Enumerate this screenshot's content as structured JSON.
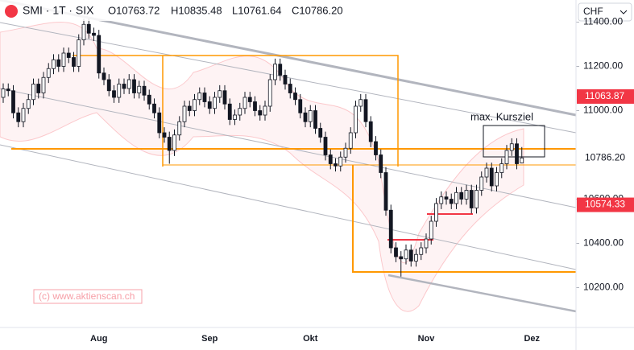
{
  "header": {
    "symbol": "SMI · 1T · SIX",
    "open": "O10763.72",
    "high": "H10835.48",
    "low": "L10761.64",
    "close": "C10786.20"
  },
  "currency": "CHF",
  "watermark": "(c) www.aktienscan.ch",
  "annotation": "max. Kursziel",
  "chart_data": {
    "type": "candlestick",
    "categories": [
      null,
      null,
      null,
      null,
      null,
      null,
      null,
      null,
      null,
      null,
      null,
      null,
      null,
      null,
      null,
      null,
      null,
      null,
      null,
      "Aug",
      null,
      null,
      null,
      null,
      null,
      null,
      null,
      null,
      null,
      null,
      null,
      null,
      null,
      null,
      null,
      null,
      null,
      null,
      null,
      null,
      null,
      "Sep",
      null,
      null,
      null,
      null,
      null,
      null,
      null,
      null,
      null,
      null,
      null,
      null,
      null,
      null,
      null,
      null,
      null,
      null,
      null,
      "Okt",
      null,
      null,
      null,
      null,
      null,
      null,
      null,
      null,
      null,
      null,
      null,
      null,
      null,
      null,
      null,
      null,
      null,
      null,
      null,
      null,
      null,
      null,
      "Nov",
      null,
      null,
      null,
      null,
      null,
      null,
      null,
      null,
      null,
      null,
      null,
      null,
      null,
      null,
      null,
      null,
      null,
      null,
      null,
      null,
      "Dez"
    ],
    "series": [
      {
        "up_color": "#ffffff",
        "down_color": "#131722",
        "open": [
          11060,
          11098,
          11090,
          10990,
          10950,
          11010,
          11050,
          11120,
          11080,
          11150,
          11190,
          11230,
          11200,
          11260,
          11240,
          11200,
          11320,
          11390,
          11350,
          11340,
          11170,
          11140,
          11090,
          11060,
          11120,
          11100,
          11140,
          11080,
          11110,
          11070,
          11030,
          10990,
          10900,
          10880,
          10820,
          10890,
          10950,
          11020,
          11000,
          11050,
          11080,
          11040,
          11010,
          11060,
          11090,
          11030,
          10960,
          10980,
          11010,
          11060,
          11040,
          11000,
          10980,
          11020,
          11140,
          11210,
          11160,
          11120,
          11080,
          11050,
          10990,
          10950,
          11000,
          10920,
          10880,
          10800,
          10760,
          10750,
          10790,
          10830,
          10900,
          11020,
          11050,
          10950,
          10860,
          10800,
          10720,
          10550,
          10380,
          10340,
          10330,
          10370,
          10320,
          10350,
          10380,
          10420,
          10500,
          10580,
          10610,
          10600,
          10580,
          10630,
          10600,
          10640,
          10560,
          10640,
          10700,
          10740,
          10660,
          10720,
          10760,
          10820,
          10850,
          10763.72,
          null,
          null
        ],
        "high": [
          11123,
          11123,
          11115,
          11015,
          11035,
          11075,
          11145,
          11145,
          11175,
          11215,
          11255,
          11255,
          11285,
          11285,
          11265,
          11345,
          11415,
          11415,
          11375,
          11365,
          11195,
          11165,
          11115,
          11145,
          11145,
          11165,
          11165,
          11135,
          11135,
          11095,
          11055,
          11015,
          10925,
          10905,
          10915,
          10975,
          11045,
          11045,
          11075,
          11105,
          11105,
          11065,
          11085,
          11115,
          11115,
          11055,
          11005,
          11035,
          11085,
          11085,
          11065,
          11025,
          11045,
          11165,
          11235,
          11235,
          11185,
          11145,
          11105,
          11075,
          11015,
          11025,
          11025,
          10945,
          10905,
          10825,
          10785,
          10815,
          10855,
          10925,
          11045,
          11075,
          11075,
          10975,
          10885,
          10825,
          10745,
          10575,
          10405,
          10365,
          10395,
          10395,
          10375,
          10405,
          10445,
          10525,
          10605,
          10635,
          10635,
          10625,
          10655,
          10655,
          10665,
          10665,
          10665,
          10725,
          10765,
          10765,
          10745,
          10785,
          10845,
          10875,
          10875,
          10835.48,
          null,
          null
        ],
        "low": [
          11035,
          11065,
          10965,
          10925,
          10925,
          10985,
          11025,
          11055,
          11055,
          11125,
          11165,
          11175,
          11175,
          11215,
          11175,
          11175,
          11295,
          11325,
          11315,
          11145,
          11115,
          11065,
          11035,
          11035,
          11075,
          11075,
          11055,
          11055,
          11045,
          11005,
          10965,
          10875,
          10855,
          10760,
          10795,
          10865,
          10925,
          10975,
          10975,
          11025,
          11015,
          10985,
          10985,
          11035,
          11005,
          10935,
          10935,
          10955,
          10985,
          11015,
          10975,
          10955,
          10955,
          10995,
          11115,
          11135,
          11095,
          11055,
          11025,
          10965,
          10925,
          10925,
          10895,
          10855,
          10775,
          10735,
          10725,
          10725,
          10765,
          10805,
          10875,
          10995,
          10925,
          10835,
          10775,
          10695,
          10525,
          10355,
          10315,
          10250,
          10305,
          10295,
          10295,
          10325,
          10355,
          10395,
          10475,
          10555,
          10575,
          10555,
          10555,
          10575,
          10575,
          10535,
          10535,
          10615,
          10675,
          10635,
          10635,
          10695,
          10735,
          10795,
          10735,
          10761.64,
          null,
          null
        ],
        "close": [
          11098,
          11090,
          10990,
          10950,
          11010,
          11050,
          11120,
          11080,
          11150,
          11190,
          11230,
          11200,
          11260,
          11240,
          11200,
          11320,
          11390,
          11350,
          11340,
          11170,
          11140,
          11090,
          11060,
          11120,
          11100,
          11140,
          11080,
          11110,
          11070,
          11030,
          10990,
          10900,
          10880,
          10820,
          10890,
          10950,
          11020,
          11000,
          11050,
          11080,
          11040,
          11010,
          11060,
          11090,
          11030,
          10960,
          10980,
          11010,
          11060,
          11040,
          11000,
          10980,
          11020,
          11140,
          11210,
          11160,
          11120,
          11080,
          11050,
          10990,
          10950,
          11000,
          10920,
          10880,
          10800,
          10760,
          10750,
          10790,
          10830,
          10900,
          11020,
          11050,
          10950,
          10860,
          10800,
          10720,
          10550,
          10380,
          10340,
          10330,
          10370,
          10320,
          10350,
          10380,
          10420,
          10500,
          10580,
          10610,
          10600,
          10580,
          10630,
          10600,
          10640,
          10560,
          10640,
          10700,
          10740,
          10660,
          10720,
          10760,
          10820,
          10850,
          10760,
          10786.2,
          null,
          null
        ]
      }
    ],
    "ylim": [
      10020,
      11500
    ],
    "yticks": [
      {
        "value": 11400,
        "label": "11400.00"
      },
      {
        "value": 11200,
        "label": "11200.00"
      },
      {
        "value": 11000,
        "label": "11000.00"
      },
      {
        "value": 10600,
        "label": "10600.00"
      },
      {
        "value": 10400,
        "label": "10400.00"
      },
      {
        "value": 10200,
        "label": "10200.00"
      }
    ],
    "price_labels": [
      {
        "value": 11063.87,
        "color": "#f23645"
      },
      {
        "value": 10574.33,
        "color": "#f23645"
      },
      {
        "value": 10786.2,
        "label": "10786.20",
        "color": "#ffffff"
      }
    ]
  }
}
